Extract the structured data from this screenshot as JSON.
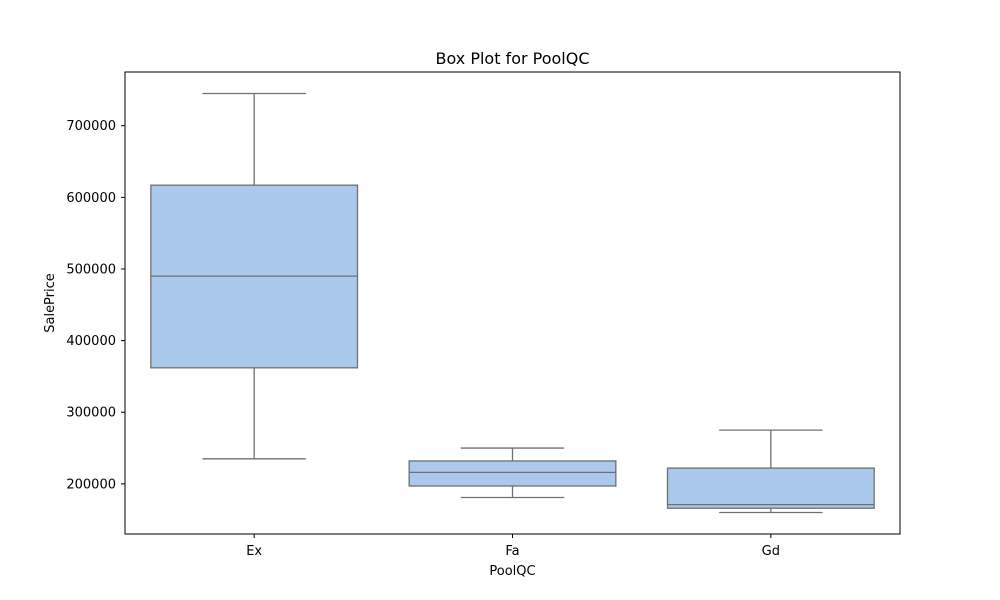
{
  "chart_data": {
    "type": "box",
    "title": "Box Plot for PoolQC",
    "xlabel": "PoolQC",
    "ylabel": "SalePrice",
    "ylim": [
      130000,
      775000
    ],
    "yticks": [
      200000,
      300000,
      400000,
      500000,
      600000,
      700000
    ],
    "box_color": "#abc9ec",
    "line_color": "#707070",
    "categories": [
      "Ex",
      "Fa",
      "Gd"
    ],
    "boxes": [
      {
        "category": "Ex",
        "whisker_low": 235000,
        "q1": 362000,
        "median": 490000,
        "q3": 617000,
        "whisker_high": 745000
      },
      {
        "category": "Fa",
        "whisker_low": 181000,
        "q1": 197000,
        "median": 216000,
        "q3": 232000,
        "whisker_high": 250000
      },
      {
        "category": "Gd",
        "whisker_low": 160000,
        "q1": 166000,
        "median": 171000,
        "q3": 222000,
        "whisker_high": 275000
      }
    ]
  }
}
